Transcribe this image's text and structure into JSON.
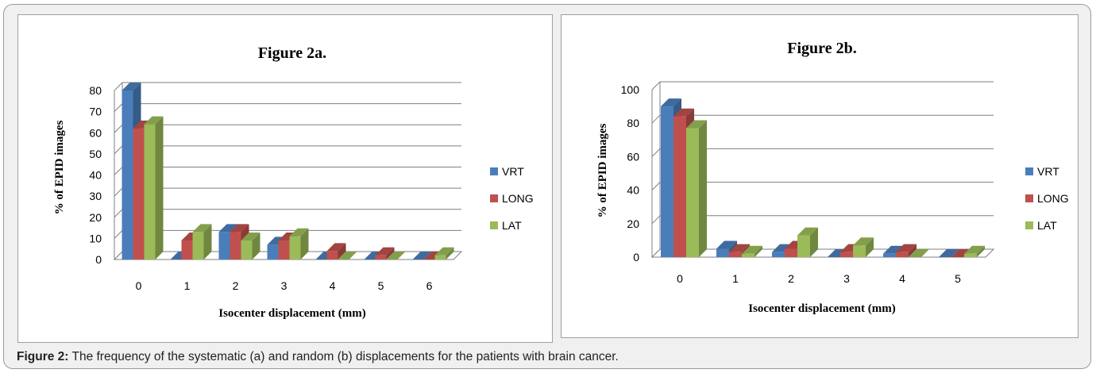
{
  "caption": {
    "label": "Figure 2:",
    "text": "The frequency of the systematic (a) and random (b) displacements for the patients with brain cancer."
  },
  "colors": {
    "VRT": "#4a7ebb",
    "LONG": "#c0504d",
    "LAT": "#9bbb59"
  },
  "chart_data": [
    {
      "type": "bar",
      "title": "Figure 2a.",
      "xlabel": "Isocenter displacement (mm)",
      "ylabel": "% of EPID images",
      "categories": [
        "0",
        "1",
        "2",
        "3",
        "4",
        "5",
        "6"
      ],
      "ylim": [
        0,
        80
      ],
      "yticks": [
        0,
        10,
        20,
        30,
        40,
        50,
        60,
        70,
        80
      ],
      "series": [
        {
          "name": "VRT",
          "values": [
            80,
            0,
            13,
            7,
            0,
            0,
            0
          ]
        },
        {
          "name": "LONG",
          "values": [
            62,
            9,
            13,
            9,
            4,
            2,
            0
          ]
        },
        {
          "name": "LAT",
          "values": [
            64,
            13,
            9,
            11,
            0,
            0,
            2
          ]
        }
      ],
      "legend": "right",
      "grid": true
    },
    {
      "type": "bar",
      "title": "Figure 2b.",
      "xlabel": "Isocenter displacement (mm)",
      "ylabel": "% of EPID images",
      "categories": [
        "0",
        "1",
        "2",
        "3",
        "4",
        "5"
      ],
      "ylim": [
        0,
        100
      ],
      "yticks": [
        0,
        20,
        40,
        60,
        80,
        100
      ],
      "series": [
        {
          "name": "VRT",
          "values": [
            90,
            5,
            3,
            0,
            2,
            0
          ]
        },
        {
          "name": "LONG",
          "values": [
            84,
            3,
            5,
            3,
            3,
            0
          ]
        },
        {
          "name": "LAT",
          "values": [
            77,
            2,
            13,
            7,
            0,
            2
          ]
        }
      ],
      "legend": "right",
      "grid": true
    }
  ]
}
